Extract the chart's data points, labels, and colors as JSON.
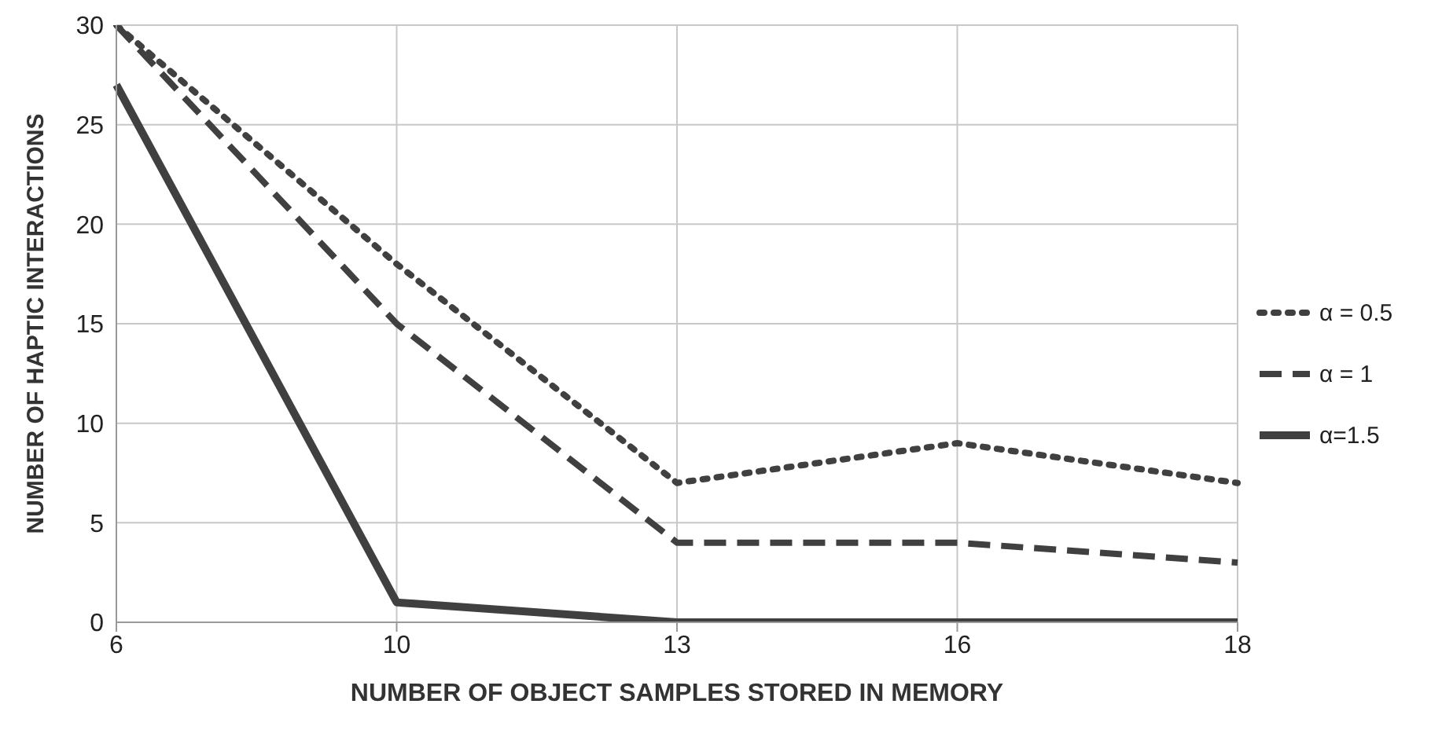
{
  "chart_data": {
    "type": "line",
    "xlabel": "NUMBER OF OBJECT SAMPLES STORED IN MEMORY",
    "ylabel": "NUMBER OF HAPTIC INTERACTIONS",
    "categories": [
      "6",
      "10",
      "13",
      "16",
      "18"
    ],
    "series": [
      {
        "name": "α = 0.5",
        "color": "#404040",
        "line_style": "dotted",
        "values": [
          30,
          18,
          7,
          9,
          7
        ]
      },
      {
        "name": "α = 1",
        "color": "#404040",
        "line_style": "dashed",
        "values": [
          30,
          15,
          4,
          4,
          3
        ]
      },
      {
        "name": "α=1.5",
        "color": "#404040",
        "line_style": "solid",
        "values": [
          27,
          1,
          0,
          0,
          0
        ]
      }
    ],
    "ylim": [
      0,
      30
    ],
    "yticks": [
      0,
      5,
      10,
      15,
      20,
      25,
      30
    ],
    "grid": true,
    "legend": "right",
    "marker": "none"
  }
}
